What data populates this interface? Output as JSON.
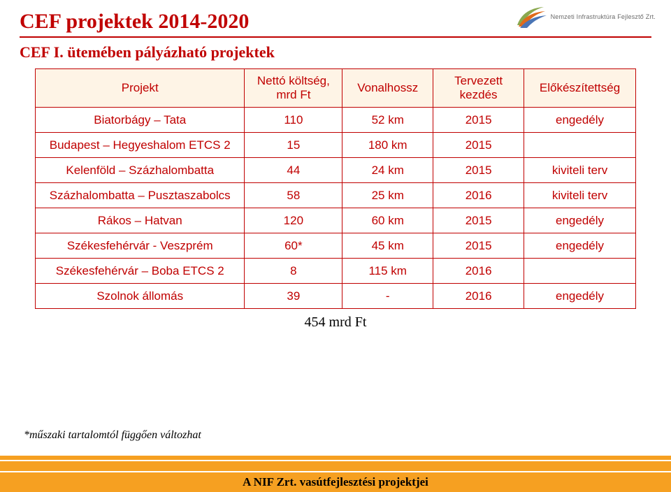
{
  "title": "CEF projektek 2014-2020",
  "subtitle": "CEF I. ütemében pályázható projektek",
  "logo_text": "Nemzeti Infrastruktúra Fejlesztő Zrt.",
  "table": {
    "columns": [
      "Projekt",
      "Nettó költség, mrd Ft",
      "Vonalhossz",
      "Tervezett kezdés",
      "Előkészítettség"
    ],
    "rows": [
      [
        "Biatorbágy – Tata",
        "110",
        "52 km",
        "2015",
        "engedély"
      ],
      [
        "Budapest – Hegyeshalom ETCS 2",
        "15",
        "180 km",
        "2015",
        ""
      ],
      [
        "Kelenföld – Százhalombatta",
        "44",
        "24 km",
        "2015",
        "kiviteli terv"
      ],
      [
        "Százhalombatta – Pusztaszabolcs",
        "58",
        "25 km",
        "2016",
        "kiviteli terv"
      ],
      [
        "Rákos – Hatvan",
        "120",
        "60 km",
        "2015",
        "engedély"
      ],
      [
        "Székesfehérvár - Veszprém",
        "60*",
        "45 km",
        "2015",
        "engedély"
      ],
      [
        "Székesfehérvár – Boba ETCS 2",
        "8",
        "115 km",
        "2016",
        ""
      ],
      [
        "Szolnok állomás",
        "39",
        "-",
        "2016",
        "engedély"
      ]
    ],
    "col_widths": [
      "300px",
      "140px",
      "130px",
      "130px",
      "160px"
    ]
  },
  "total_label": "454 mrd Ft",
  "footnote": "*műszaki tartalomtól függően változhat",
  "footer_text": "A NIF Zrt. vasútfejlesztési projektjei",
  "colors": {
    "brand_red": "#c00000",
    "header_bg": "#fef4e6",
    "footer_orange": "#f6a021"
  }
}
